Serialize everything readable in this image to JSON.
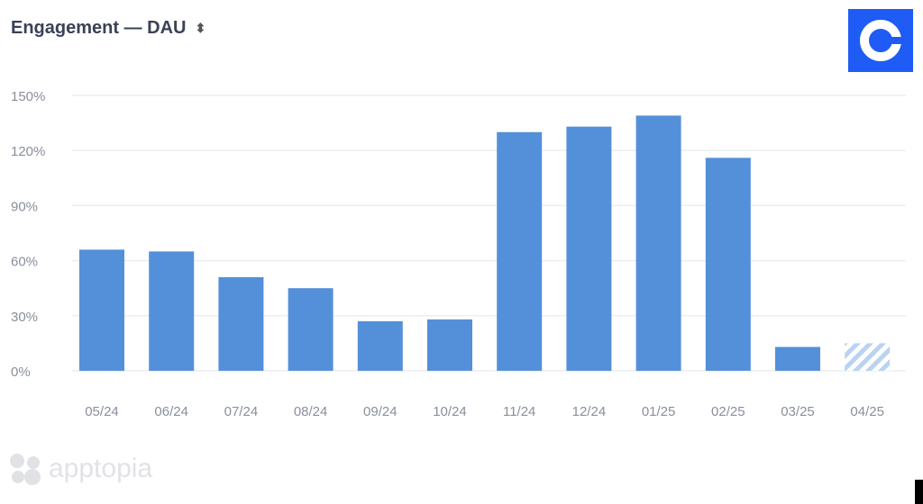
{
  "header": {
    "title": "Engagement — DAU",
    "sort_icon": "sort-updown-icon"
  },
  "logo": {
    "name": "coinbase-logo",
    "color": "#1f5cf5"
  },
  "watermark": {
    "text": "apptopia"
  },
  "chart_data": {
    "type": "bar",
    "title": "Engagement — DAU",
    "categories": [
      "05/24",
      "06/24",
      "07/24",
      "08/24",
      "09/24",
      "10/24",
      "11/24",
      "12/24",
      "01/25",
      "02/25",
      "03/25",
      "04/25"
    ],
    "values": [
      66,
      65,
      51,
      45,
      27,
      28,
      130,
      133,
      139,
      116,
      13,
      15
    ],
    "unit": "%",
    "projected": [
      false,
      false,
      false,
      false,
      false,
      false,
      false,
      false,
      false,
      false,
      false,
      true
    ],
    "ylim": [
      0,
      150
    ],
    "yticks": [
      "0%",
      "30%",
      "60%",
      "90%",
      "120%",
      "150%"
    ],
    "grid": true,
    "bar_color": "#5490d9",
    "projected_style": "hatched"
  }
}
